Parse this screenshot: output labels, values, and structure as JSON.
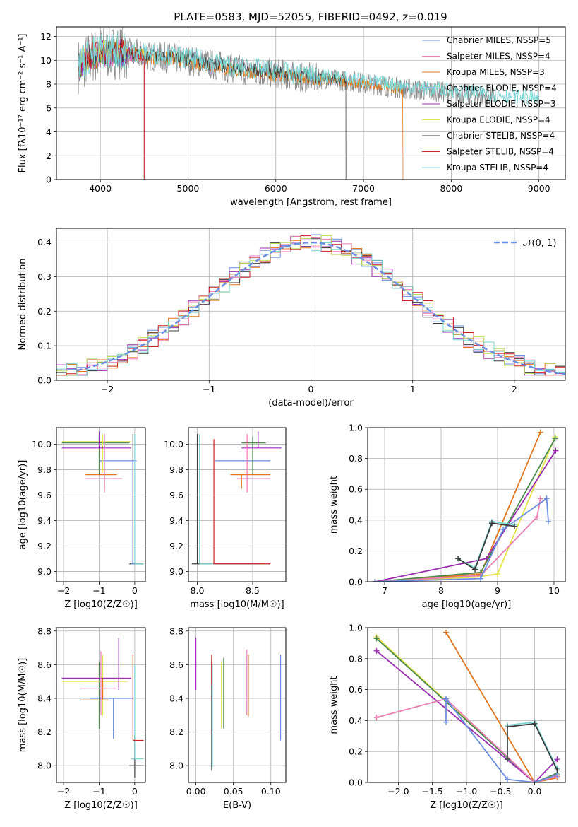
{
  "figure": {
    "title": "PLATE=0583, MJD=52055, FIBERID=0492, z=0.019"
  },
  "colors": {
    "series": [
      "#6b8ee0",
      "#e87fb4",
      "#e0761e",
      "#4a8a4a",
      "#9a2fb0",
      "#e6e24a",
      "#3c3c3c",
      "#cc1f1f",
      "#7ad6d4"
    ],
    "data": "#888888",
    "grid": "#b0b0b0",
    "norm": "#6b8ee0",
    "hist": [
      "#6b8ee0",
      "#e0761e",
      "#9a2fb0",
      "#3c3c3c",
      "#e87fb4",
      "#b8e05a",
      "#cc1f1f",
      "#7ad6d4"
    ]
  },
  "chart_data": [
    {
      "type": "line",
      "id": "spectrum",
      "title": "PLATE=0583, MJD=52055, FIBERID=0492, z=0.019",
      "xlabel": "wavelength [Angstrom, rest frame]",
      "ylabel": "Flux [fλ10⁻¹⁷ erg cm⁻² s⁻¹ A⁻¹]",
      "xlim": [
        3500,
        9300
      ],
      "ylim": [
        0,
        12.8
      ],
      "xticks": [
        4000,
        5000,
        6000,
        7000,
        8000,
        9000
      ],
      "yticks": [
        0,
        2,
        4,
        6,
        8,
        10,
        12
      ],
      "legend_position": "top-right",
      "legend": [
        "Chabrier MILES, N_SSP=5",
        "Salpeter MILES, N_SSP=4",
        "Kroupa MILES, N_SSP=3",
        "Chabrier ELODIE, N_SSP=4",
        "Salpeter ELODIE, N_SSP=3",
        "Kroupa ELODIE, N_SSP=4",
        "Chabrier STELIB, N_SSP=4",
        "Salpeter STELIB, N_SSP=4",
        "Kroupa STELIB, N_SSP=4"
      ],
      "continuum": {
        "x": [
          3750,
          3900,
          4000,
          4200,
          4500,
          4800,
          5000,
          5300,
          5600,
          6000,
          6300,
          6600,
          6900,
          7200,
          7500,
          7800,
          8100,
          8400,
          8700,
          9000
        ],
        "y": [
          9.5,
          10.3,
          10.6,
          10.7,
          10.4,
          10.2,
          10.0,
          9.6,
          9.2,
          8.9,
          8.6,
          8.4,
          8.2,
          7.9,
          7.6,
          7.4,
          7.2,
          7.0,
          6.8,
          6.6
        ]
      },
      "notes": "model curves end near 4500 (Kroupa MILES at 7450); data spectrum shown in grey"
    },
    {
      "type": "histogram",
      "id": "residuals",
      "xlabel": "(data-model)/error",
      "ylabel": "Normed distribution",
      "xlim": [
        -2.5,
        2.5
      ],
      "ylim": [
        0,
        0.44
      ],
      "xticks": [
        -2,
        -1,
        0,
        1,
        2
      ],
      "yticks": [
        0,
        0.1,
        0.2,
        0.3,
        0.4
      ],
      "legend_position": "top-right",
      "reference_label": "𝒩(0, 1)",
      "bin_width": 0.1
    },
    {
      "type": "scatter",
      "id": "age-vs-Z",
      "xlabel": "Z [log10(Z/Z☉)]",
      "ylabel": "age  [log10(age/yr)]",
      "xlim": [
        -2.2,
        0.3
      ],
      "ylim": [
        8.92,
        10.13
      ],
      "xticks": [
        -2,
        -1,
        0
      ],
      "yticks": [
        9.0,
        9.2,
        9.4,
        9.6,
        9.8,
        10.0
      ],
      "points": [
        {
          "c": 0,
          "x": -0.45,
          "y": 9.87,
          "xl": -1.0,
          "xh": 0.05,
          "yl": 9.87,
          "yh": 9.87
        },
        {
          "c": 3,
          "x": -1.0,
          "y": 10.01,
          "xl": -2.05,
          "xh": -0.15,
          "yl": 9.76,
          "yh": 10.06
        },
        {
          "c": 5,
          "x": -0.9,
          "y": 10.02,
          "xl": -2.05,
          "xh": -0.1,
          "yl": 9.78,
          "yh": 10.08
        },
        {
          "c": 4,
          "x": -1.0,
          "y": 9.97,
          "xl": -2.05,
          "xh": -0.1,
          "yl": 9.97,
          "yh": 10.1
        },
        {
          "c": 2,
          "x": -0.85,
          "y": 9.76,
          "xl": -1.4,
          "xh": -0.5,
          "yl": 9.65,
          "yh": 9.76
        },
        {
          "c": 1,
          "x": -0.85,
          "y": 9.73,
          "xl": -1.4,
          "xh": -0.35,
          "yl": 9.62,
          "yh": 10.08
        },
        {
          "c": 6,
          "x": -0.05,
          "y": 9.06,
          "xl": -0.15,
          "xh": 0.25,
          "yl": 9.06,
          "yh": 10.08
        },
        {
          "c": 8,
          "x": 0.0,
          "y": 9.06,
          "xl": -0.1,
          "xh": 0.25,
          "yl": 9.06,
          "yh": 10.08
        },
        {
          "c": 0,
          "x": -0.05,
          "y": 9.06,
          "xl": -0.1,
          "xh": 0.0,
          "yl": 9.06,
          "yh": 9.87
        }
      ]
    },
    {
      "type": "scatter",
      "id": "age-vs-mass",
      "xlabel": "mass [log10(M/M☉)]",
      "ylabel": "",
      "xlim": [
        7.92,
        8.8
      ],
      "ylim": [
        8.92,
        10.13
      ],
      "xticks": [
        8.0,
        8.5
      ],
      "yticks": [
        9.0,
        9.2,
        9.4,
        9.6,
        9.8,
        10.0
      ],
      "points": [
        {
          "c": 0,
          "x": 8.4,
          "y": 9.87,
          "xl": 8.16,
          "xh": 8.66,
          "yl": 9.87,
          "yh": 9.87
        },
        {
          "c": 3,
          "x": 8.5,
          "y": 10.01,
          "xl": 8.4,
          "xh": 8.62,
          "yl": 9.76,
          "yh": 10.06
        },
        {
          "c": 4,
          "x": 8.55,
          "y": 9.97,
          "xl": 8.4,
          "xh": 8.76,
          "yl": 9.97,
          "yh": 10.1
        },
        {
          "c": 2,
          "x": 8.4,
          "y": 9.76,
          "xl": 8.3,
          "xh": 8.66,
          "yl": 9.65,
          "yh": 9.76
        },
        {
          "c": 1,
          "x": 8.45,
          "y": 9.73,
          "xl": 8.36,
          "xh": 8.66,
          "yl": 9.62,
          "yh": 10.08
        },
        {
          "c": 6,
          "x": 8.0,
          "y": 9.06,
          "xl": 7.95,
          "xh": 8.55,
          "yl": 9.06,
          "yh": 10.08
        },
        {
          "c": 8,
          "x": 8.02,
          "y": 9.06,
          "xl": 8.02,
          "xh": 8.6,
          "yl": 9.06,
          "yh": 10.08
        },
        {
          "c": 7,
          "x": 8.15,
          "y": 9.06,
          "xl": 8.15,
          "xh": 8.66,
          "yl": 9.06,
          "yh": 10.04
        }
      ]
    },
    {
      "type": "line",
      "id": "weight-vs-age",
      "xlabel": "age  [log10(age/yr)]",
      "ylabel": "mass weight",
      "xlim": [
        6.7,
        10.2
      ],
      "ylim": [
        0,
        1.0
      ],
      "xticks": [
        7,
        8,
        9,
        10
      ],
      "yticks": [
        0,
        0.2,
        0.4,
        0.6,
        0.8,
        1.0
      ],
      "series": [
        {
          "c": 2,
          "x": [
            6.83,
            8.7,
            9.76
          ],
          "y": [
            0.0,
            0.05,
            0.97
          ]
        },
        {
          "c": 5,
          "x": [
            6.83,
            8.6,
            9.0,
            10.02
          ],
          "y": [
            0.0,
            0.03,
            0.05,
            0.94
          ]
        },
        {
          "c": 3,
          "x": [
            6.83,
            8.7,
            10.02
          ],
          "y": [
            0.0,
            0.06,
            0.93
          ]
        },
        {
          "c": 4,
          "x": [
            6.83,
            8.8,
            10.03
          ],
          "y": [
            0.0,
            0.15,
            0.85
          ]
        },
        {
          "c": 1,
          "x": [
            6.83,
            8.7,
            9.7,
            9.76
          ],
          "y": [
            0.0,
            0.04,
            0.42,
            0.54
          ]
        },
        {
          "c": 0,
          "x": [
            6.83,
            8.7,
            9.1,
            9.87,
            9.9
          ],
          "y": [
            0.0,
            0.02,
            0.34,
            0.54,
            0.39
          ]
        },
        {
          "c": 8,
          "x": [
            8.3,
            8.6,
            8.9,
            9.3
          ],
          "y": [
            0.15,
            0.09,
            0.39,
            0.37
          ]
        },
        {
          "c": 6,
          "x": [
            8.3,
            8.6,
            8.9,
            9.3
          ],
          "y": [
            0.15,
            0.08,
            0.38,
            0.36
          ]
        }
      ]
    },
    {
      "type": "scatter",
      "id": "mass-vs-Z",
      "xlabel": "Z [log10(Z/Z☉)]",
      "ylabel": "mass [log10(M/M☉)]",
      "xlim": [
        -2.2,
        0.3
      ],
      "ylim": [
        7.9,
        8.82
      ],
      "xticks": [
        -2,
        -1,
        0
      ],
      "yticks": [
        8.0,
        8.2,
        8.4,
        8.6,
        8.8
      ],
      "points": [
        {
          "c": 0,
          "x": -0.6,
          "y": 8.4,
          "xl": -1.25,
          "xh": -0.05,
          "yl": 8.16,
          "yh": 8.4
        },
        {
          "c": 3,
          "x": -1.0,
          "y": 8.52,
          "xl": -2.05,
          "xh": -0.3,
          "yl": 8.22,
          "yh": 8.62
        },
        {
          "c": 5,
          "x": -0.9,
          "y": 8.5,
          "xl": -2.05,
          "xh": -0.2,
          "yl": 8.3,
          "yh": 8.66
        },
        {
          "c": 4,
          "x": -0.45,
          "y": 8.52,
          "xl": -2.05,
          "xh": -0.1,
          "yl": 8.45,
          "yh": 8.76
        },
        {
          "c": 2,
          "x": -0.9,
          "y": 8.39,
          "xl": -1.55,
          "xh": -0.75,
          "yl": 8.39,
          "yh": 8.52
        },
        {
          "c": 1,
          "x": -0.95,
          "y": 8.46,
          "xl": -1.55,
          "xh": -0.5,
          "yl": 8.3,
          "yh": 8.68
        },
        {
          "c": 6,
          "x": 0.0,
          "y": 8.0,
          "xl": -0.15,
          "xh": 0.25,
          "yl": 7.93,
          "yh": 8.18
        },
        {
          "c": 8,
          "x": 0.0,
          "y": 8.04,
          "xl": -0.1,
          "xh": 0.25,
          "yl": 8.04,
          "yh": 8.6
        },
        {
          "c": 7,
          "x": -0.05,
          "y": 8.15,
          "xl": -0.05,
          "xh": 0.25,
          "yl": 8.15,
          "yh": 8.66
        }
      ]
    },
    {
      "type": "scatter",
      "id": "mass-vs-ebv",
      "xlabel": "E(B-V)",
      "ylabel": "",
      "xlim": [
        -0.01,
        0.12
      ],
      "ylim": [
        7.9,
        8.82
      ],
      "xticks": [
        0.0,
        0.05,
        0.1
      ],
      "yticks": [
        8.0,
        8.2,
        8.4,
        8.6,
        8.8
      ],
      "points": [
        {
          "c": 4,
          "x": 0.0,
          "y": 8.6,
          "yl": 8.45,
          "yh": 8.76
        },
        {
          "c": 6,
          "x": 0.021,
          "y": 8.2,
          "yl": 7.97,
          "yh": 8.63
        },
        {
          "c": 7,
          "x": 0.021,
          "y": 8.57,
          "yl": 8.48,
          "yh": 8.66
        },
        {
          "c": 8,
          "x": 0.022,
          "y": 8.3,
          "yl": 7.99,
          "yh": 8.6
        },
        {
          "c": 5,
          "x": 0.034,
          "y": 8.42,
          "yl": 8.22,
          "yh": 8.62
        },
        {
          "c": 3,
          "x": 0.037,
          "y": 8.44,
          "yl": 8.22,
          "yh": 8.64
        },
        {
          "c": 1,
          "x": 0.068,
          "y": 8.6,
          "yl": 8.3,
          "yh": 8.69
        },
        {
          "c": 2,
          "x": 0.07,
          "y": 8.5,
          "yl": 8.29,
          "yh": 8.66
        },
        {
          "c": 0,
          "x": 0.113,
          "y": 8.4,
          "yl": 8.15,
          "yh": 8.66
        }
      ]
    },
    {
      "type": "line",
      "id": "weight-vs-Z",
      "xlabel": "Z [log10(Z/Z☉)]",
      "ylabel": "mass weight",
      "xlim": [
        -2.45,
        0.45
      ],
      "ylim": [
        0,
        1.0
      ],
      "xticks": [
        -2.0,
        -1.5,
        -1.0,
        -0.5,
        0.0
      ],
      "yticks": [
        0,
        0.2,
        0.4,
        0.6,
        0.8,
        1.0
      ],
      "series": [
        {
          "c": 2,
          "x": [
            -1.3,
            0.0,
            0.33
          ],
          "y": [
            0.97,
            0.0,
            0.03
          ]
        },
        {
          "c": 5,
          "x": [
            -2.32,
            0.0,
            0.33
          ],
          "y": [
            0.94,
            0.0,
            0.05
          ]
        },
        {
          "c": 3,
          "x": [
            -2.32,
            0.0,
            0.33
          ],
          "y": [
            0.93,
            0.0,
            0.06
          ]
        },
        {
          "c": 4,
          "x": [
            -2.32,
            0.0,
            0.33
          ],
          "y": [
            0.85,
            0.0,
            0.15
          ]
        },
        {
          "c": 1,
          "x": [
            -2.32,
            -1.3,
            0.0,
            0.33
          ],
          "y": [
            0.42,
            0.54,
            0.0,
            0.04
          ]
        },
        {
          "c": 0,
          "x": [
            -1.3,
            -1.3,
            -0.4,
            0.0,
            0.33
          ],
          "y": [
            0.39,
            0.54,
            0.02,
            0.0,
            0.05
          ]
        },
        {
          "c": 8,
          "x": [
            -0.4,
            -0.4,
            0.0,
            0.33
          ],
          "y": [
            0.15,
            0.37,
            0.39,
            0.09
          ]
        },
        {
          "c": 6,
          "x": [
            -0.4,
            -0.4,
            0.0,
            0.33
          ],
          "y": [
            0.15,
            0.36,
            0.38,
            0.08
          ]
        }
      ]
    }
  ]
}
